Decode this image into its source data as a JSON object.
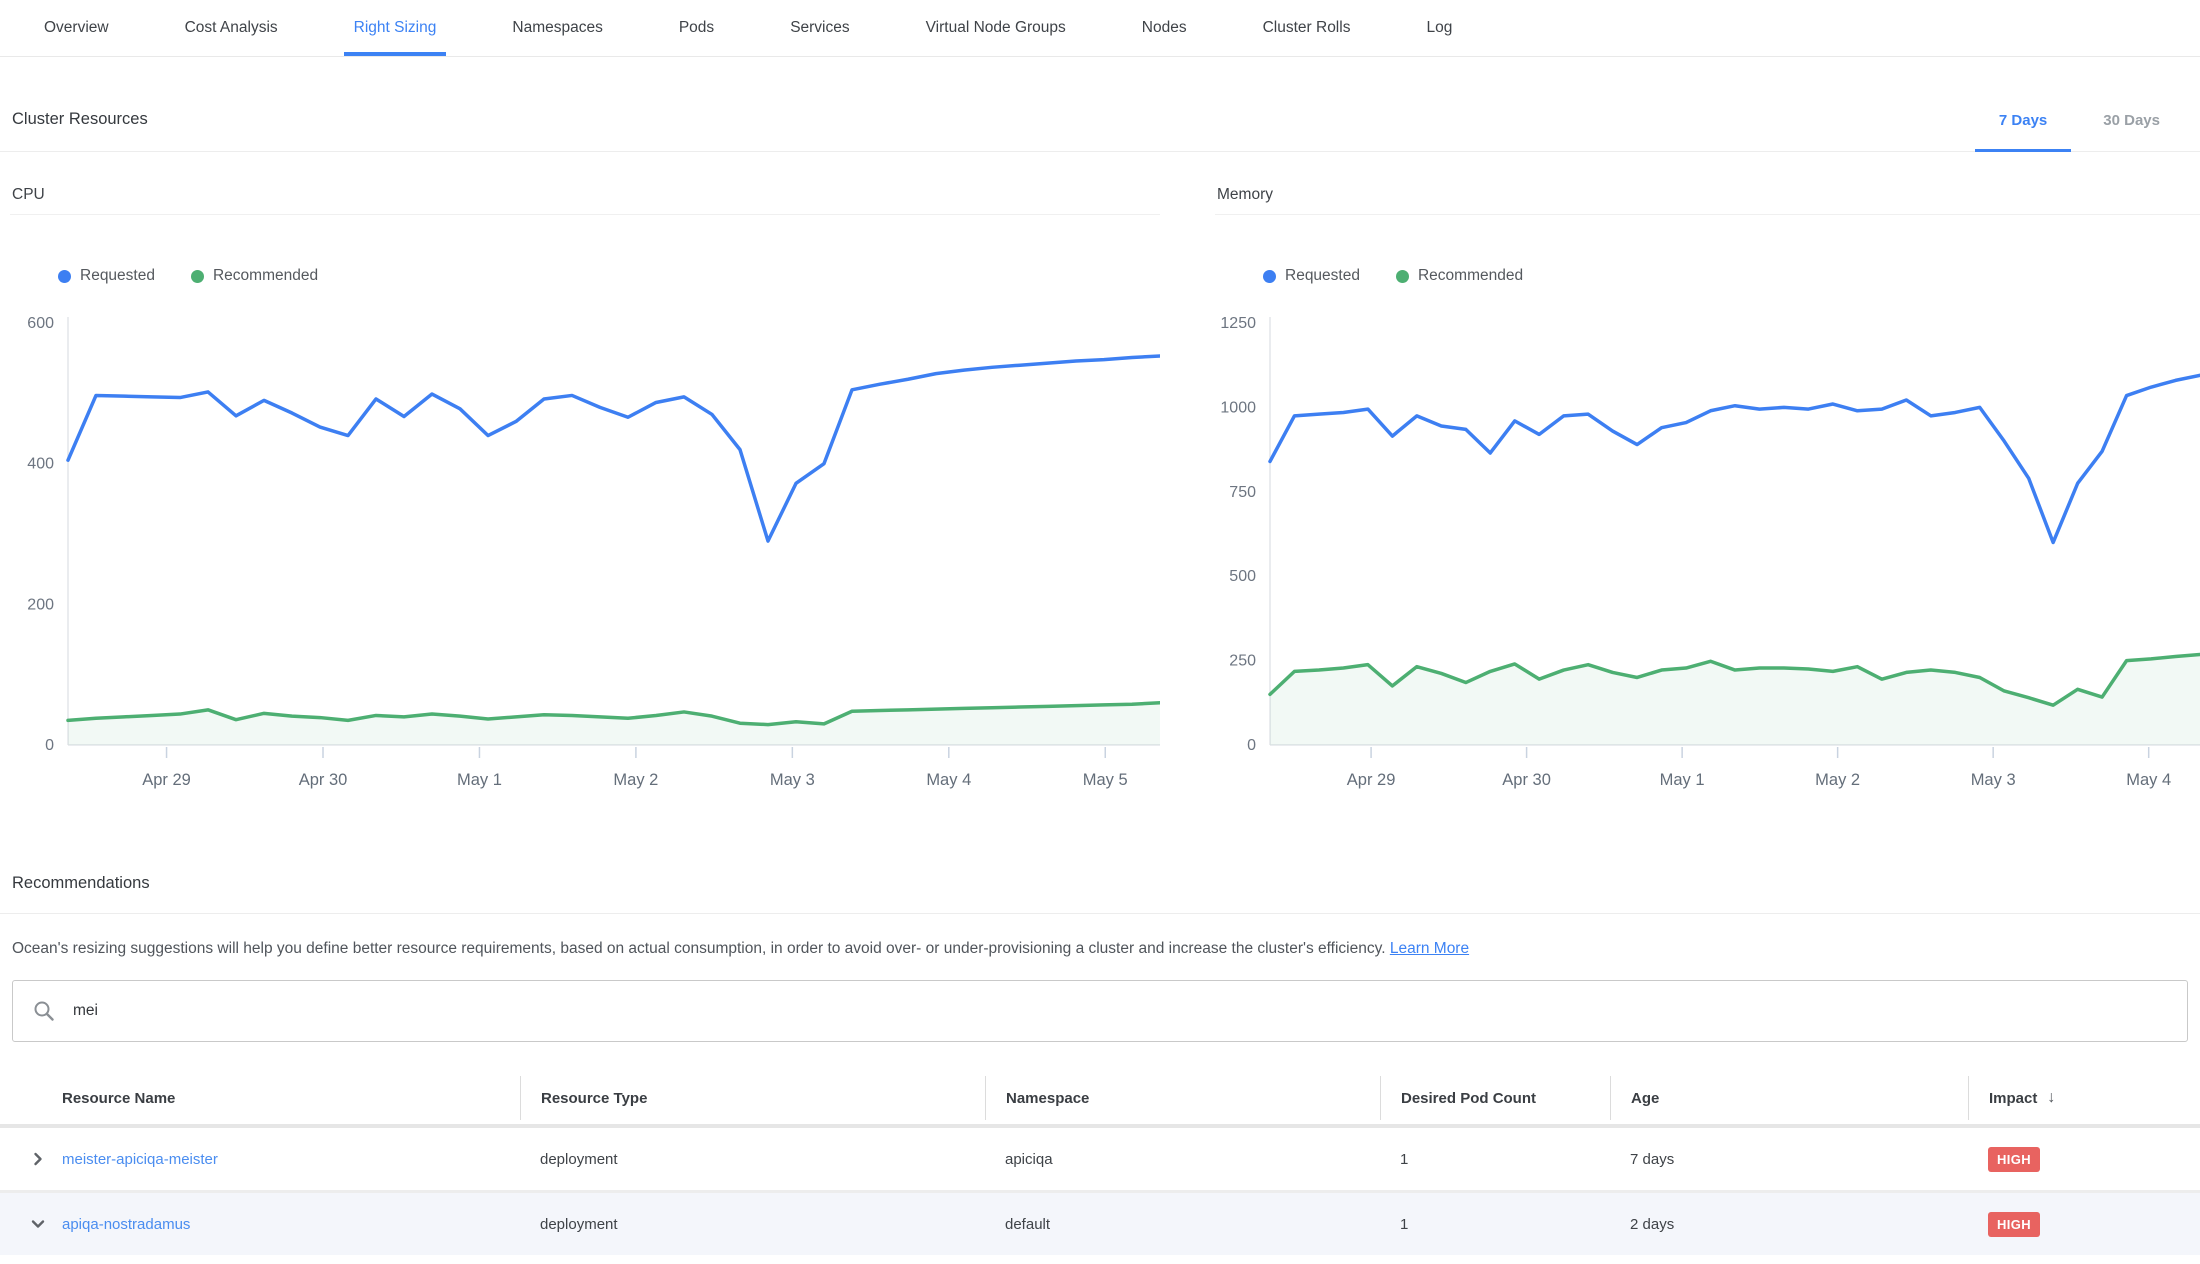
{
  "colors": {
    "accent_blue": "#3c82f4",
    "series_blue": "#3d7ff2",
    "series_green": "#4daf72",
    "badge_red": "#e86360",
    "link_blue": "#4a8df0"
  },
  "tabs": {
    "items": [
      "Overview",
      "Cost Analysis",
      "Right Sizing",
      "Namespaces",
      "Pods",
      "Services",
      "Virtual Node Groups",
      "Nodes",
      "Cluster Rolls",
      "Log"
    ],
    "active": "Right Sizing"
  },
  "cluster_resources": {
    "title": "Cluster Resources",
    "range_tabs": [
      {
        "label": "7 Days",
        "active": true
      },
      {
        "label": "30 Days",
        "active": false
      }
    ]
  },
  "chart_data": [
    {
      "id": "cpu",
      "type": "line",
      "title": "CPU",
      "legend_position": "top-left",
      "grid": false,
      "y_ticks": [
        0,
        200,
        400,
        600
      ],
      "y_max": 600,
      "x_tick_labels": [
        "Apr 29",
        "Apr 30",
        "May 1",
        "May 2",
        "May 3",
        "May 4",
        "May 5"
      ],
      "x_tick_days": [
        0,
        1,
        2,
        3,
        4,
        5,
        6
      ],
      "x_domain": [
        -0.63,
        6.35
      ],
      "series": [
        {
          "name": "Requested",
          "color": "#3d7ff2",
          "fill": false,
          "values": [
            405,
            497,
            496,
            495,
            494,
            502,
            468,
            490,
            472,
            452,
            440,
            492,
            467,
            499,
            478,
            440,
            460,
            492,
            497,
            480,
            466,
            487,
            495,
            470,
            420,
            290,
            372,
            400,
            505,
            513,
            520,
            528,
            533,
            537,
            540,
            543,
            546,
            548,
            551,
            553
          ]
        },
        {
          "name": "Recommended",
          "color": "#4daf72",
          "fill": true,
          "values": [
            35,
            38,
            40,
            42,
            44,
            50,
            36,
            45,
            41,
            39,
            35,
            42,
            40,
            44,
            41,
            37,
            40,
            43,
            42,
            40,
            38,
            42,
            47,
            41,
            31,
            29,
            33,
            30,
            48,
            49,
            50,
            51,
            52,
            53,
            54,
            55,
            56,
            57,
            58,
            60
          ]
        }
      ]
    },
    {
      "id": "memory",
      "type": "line",
      "title": "Memory",
      "legend_position": "top-left",
      "grid": false,
      "y_ticks": [
        0,
        250,
        500,
        750,
        1000,
        1250
      ],
      "y_max": 1250,
      "x_tick_labels": [
        "Apr 29",
        "Apr 30",
        "May 1",
        "May 2",
        "May 3",
        "May 4"
      ],
      "x_tick_days": [
        0,
        1,
        2,
        3,
        4,
        5
      ],
      "x_domain": [
        -0.65,
        5.33
      ],
      "series": [
        {
          "name": "Requested",
          "color": "#3d7ff2",
          "fill": false,
          "values": [
            840,
            975,
            980,
            985,
            995,
            915,
            975,
            945,
            935,
            865,
            960,
            920,
            975,
            980,
            930,
            890,
            940,
            955,
            990,
            1005,
            995,
            1000,
            995,
            1010,
            990,
            995,
            1022,
            975,
            985,
            1000,
            900,
            790,
            600,
            775,
            870,
            1035,
            1060,
            1080,
            1095
          ]
        },
        {
          "name": "Recommended",
          "color": "#4daf72",
          "fill": true,
          "values": [
            150,
            218,
            222,
            228,
            238,
            175,
            232,
            212,
            185,
            218,
            240,
            195,
            222,
            238,
            215,
            200,
            222,
            228,
            248,
            222,
            228,
            228,
            225,
            218,
            232,
            195,
            215,
            222,
            215,
            200,
            160,
            140,
            118,
            165,
            142,
            250,
            255,
            262,
            268
          ]
        }
      ]
    }
  ],
  "legend": {
    "requested": "Requested",
    "recommended": "Recommended"
  },
  "recommendations": {
    "title": "Recommendations",
    "description": "Ocean's resizing suggestions will help you define better resource requirements, based on actual consumption, in order to avoid over- or under-provisioning a cluster and increase the cluster's efficiency. ",
    "learn_more_label": "Learn More"
  },
  "search": {
    "value": "mei",
    "placeholder": ""
  },
  "table": {
    "columns": [
      "Resource Name",
      "Resource Type",
      "Namespace",
      "Desired Pod Count",
      "Age",
      "Impact"
    ],
    "sort": {
      "column": "Impact",
      "direction": "desc"
    },
    "rows": [
      {
        "expanded": false,
        "name": "meister-apiciqa-meister",
        "type": "deployment",
        "namespace": "apiciqa",
        "desired_pod_count": "1",
        "age": "7 days",
        "impact": "HIGH"
      },
      {
        "expanded": true,
        "name": "apiqa-nostradamus",
        "type": "deployment",
        "namespace": "default",
        "desired_pod_count": "1",
        "age": "2 days",
        "impact": "HIGH"
      }
    ]
  }
}
